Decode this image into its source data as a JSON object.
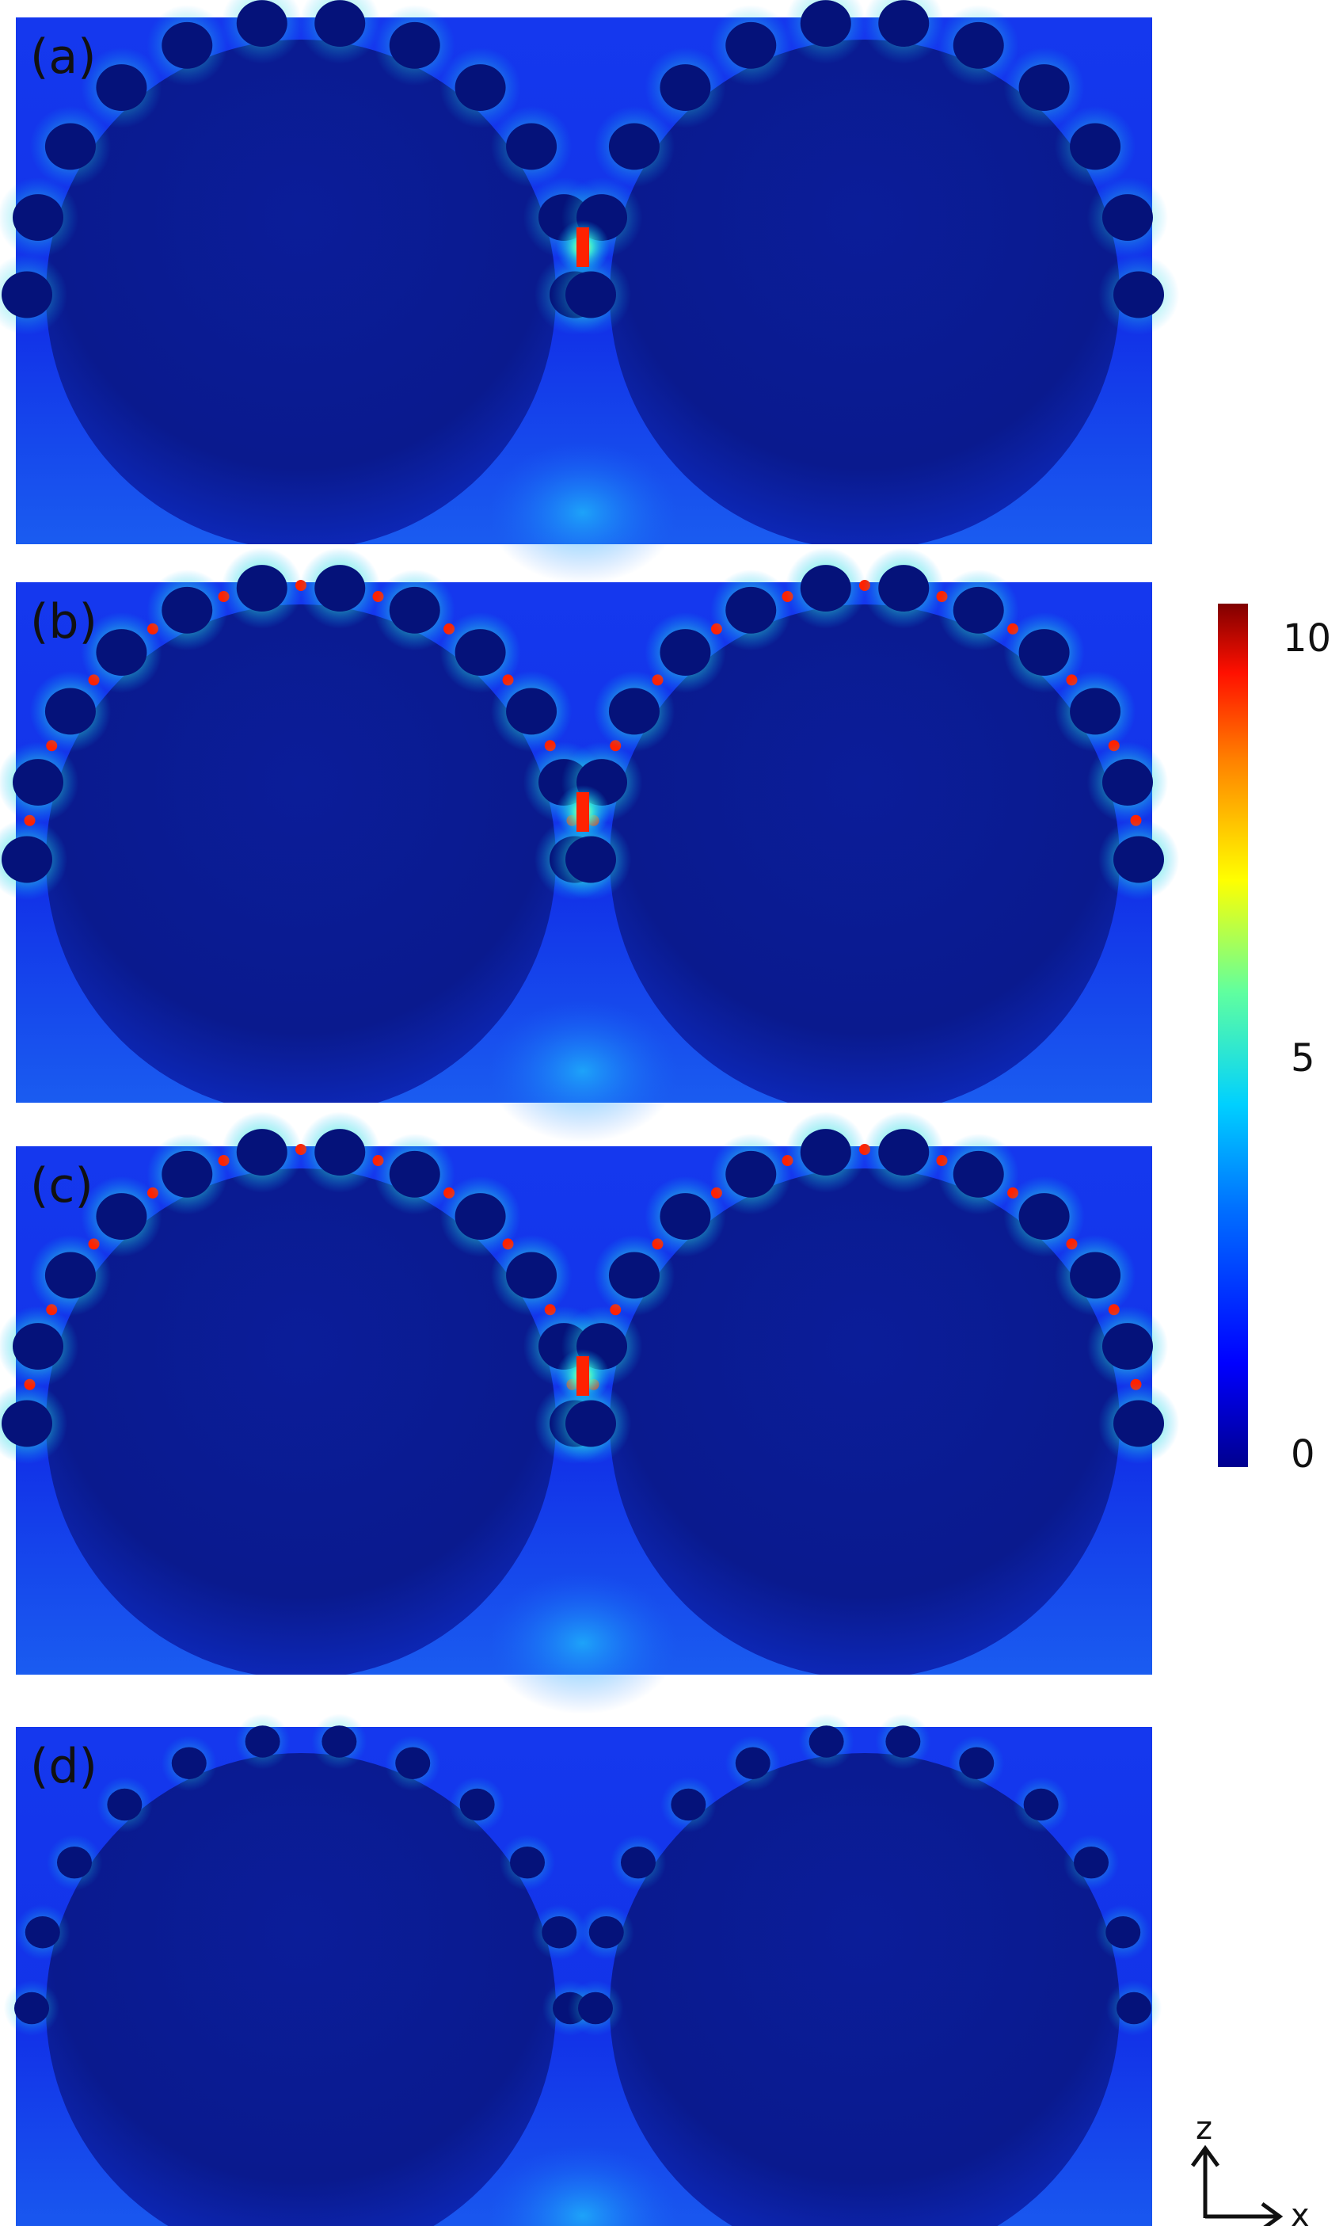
{
  "panels": [
    {
      "label": "(a)",
      "hotspot_intensity": 0.55,
      "gap_intensity": 1.0
    },
    {
      "label": "(b)",
      "hotspot_intensity": 1.0,
      "gap_intensity": 1.0
    },
    {
      "label": "(c)",
      "hotspot_intensity": 1.0,
      "gap_intensity": 1.0
    },
    {
      "label": "(d)",
      "hotspot_intensity": 0.45,
      "gap_intensity": 0.0
    }
  ],
  "colorbar": {
    "ticks": [
      "10",
      "5",
      "0"
    ],
    "min": 0,
    "max": 10,
    "colors": [
      "#00008f",
      "#0000ff",
      "#00a0ff",
      "#00ffff",
      "#80ff80",
      "#ffff00",
      "#ff8000",
      "#ff0000",
      "#800000"
    ]
  },
  "axes": {
    "z_label": "z",
    "x_label": "x"
  },
  "colors": {
    "background_field": "#1233e8",
    "sphere_fill": "#0a1a8e",
    "particle_fill": "#05127a",
    "hot": "#ff2200",
    "warm": "#ffee00",
    "cool": "#00e5ff"
  }
}
